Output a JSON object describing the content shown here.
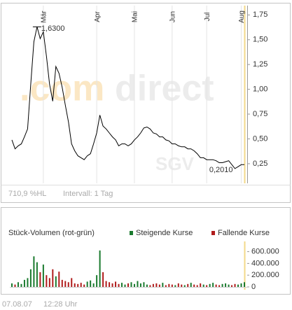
{
  "chart_data": [
    {
      "type": "line",
      "categories": [
        null,
        null,
        null,
        null,
        null,
        null,
        null,
        null,
        null,
        null,
        "Mär",
        null,
        null,
        null,
        null,
        null,
        null,
        null,
        null,
        null,
        null,
        null,
        null,
        null,
        null,
        null,
        null,
        "Apr",
        null,
        null,
        null,
        null,
        null,
        null,
        null,
        null,
        null,
        null,
        null,
        "Mai",
        null,
        null,
        null,
        null,
        null,
        null,
        null,
        null,
        null,
        null,
        null,
        "Jun",
        null,
        null,
        null,
        null,
        null,
        null,
        null,
        null,
        null,
        null,
        "Jul",
        null,
        null,
        null,
        null,
        null,
        null,
        null,
        null,
        null,
        null,
        "Aug",
        null
      ],
      "values": [
        0.49,
        0.4,
        0.43,
        0.45,
        0.52,
        0.6,
        1.05,
        1.48,
        1.63,
        1.51,
        1.58,
        1.33,
        1.05,
        0.88,
        1.23,
        1.16,
        1.02,
        0.84,
        0.67,
        0.45,
        0.38,
        0.33,
        0.31,
        0.29,
        0.33,
        0.35,
        0.45,
        0.56,
        0.74,
        0.63,
        0.6,
        0.56,
        0.52,
        0.49,
        0.43,
        0.45,
        0.45,
        0.43,
        0.45,
        0.49,
        0.52,
        0.56,
        0.61,
        0.62,
        0.6,
        0.56,
        0.55,
        0.52,
        0.52,
        0.49,
        0.48,
        0.45,
        0.45,
        0.43,
        0.42,
        0.42,
        0.4,
        0.4,
        0.38,
        0.35,
        0.31,
        0.31,
        0.29,
        0.29,
        0.29,
        0.28,
        0.26,
        0.26,
        0.27,
        0.28,
        0.24,
        0.201,
        0.22,
        0.24,
        0.24
      ],
      "color": "#000000",
      "ylim": [
        0.08,
        1.83
      ],
      "yticks": [
        {
          "value": 0.25,
          "label": "0,25"
        },
        {
          "value": 0.5,
          "label": "0,50"
        },
        {
          "value": 0.75,
          "label": "0,75"
        },
        {
          "value": 1.0,
          "label": "1,00"
        },
        {
          "value": 1.25,
          "label": "1,25"
        },
        {
          "value": 1.5,
          "label": "1,50"
        },
        {
          "value": 1.75,
          "label": "1,75"
        }
      ],
      "annotations": {
        "high": "1,6300",
        "low": "0,2010"
      },
      "watermark": [
        ".com",
        "direct",
        "SGV"
      ],
      "range_label": "710,9 %HL",
      "interval_label": "Intervall: 1 Tag"
    },
    {
      "type": "bar",
      "title": "Stück-Volumen (rot-grün)",
      "ylim": [
        0,
        750000
      ],
      "yticks": [
        0,
        {
          "value": 200000,
          "label": "200.000"
        },
        {
          "value": 400000,
          "label": "400.000"
        },
        {
          "value": 600000,
          "label": "600.000"
        }
      ],
      "series": [
        {
          "name": "Steigende Kurse",
          "color": "#1a7a2e",
          "values": [
            60000,
            null,
            80000,
            50000,
            120000,
            150000,
            300000,
            520000,
            420000,
            null,
            380000,
            null,
            null,
            null,
            180000,
            null,
            null,
            null,
            null,
            null,
            null,
            null,
            null,
            null,
            90000,
            110000,
            60000,
            200000,
            620000,
            null,
            null,
            null,
            null,
            null,
            null,
            70000,
            40000,
            null,
            80000,
            50000,
            100000,
            60000,
            80000,
            40000,
            null,
            null,
            null,
            null,
            70000,
            null,
            null,
            null,
            30000,
            null,
            null,
            30000,
            null,
            70000,
            null,
            null,
            null,
            40000,
            null,
            50000,
            70000,
            null,
            null,
            50000,
            60000,
            40000,
            null,
            null,
            40000,
            60000,
            80000
          ]
        },
        {
          "name": "Fallende Kurse",
          "color": "#b01c1c",
          "values": [
            null,
            40000,
            null,
            null,
            null,
            null,
            null,
            null,
            null,
            250000,
            null,
            200000,
            150000,
            300000,
            null,
            260000,
            120000,
            100000,
            80000,
            150000,
            60000,
            50000,
            70000,
            40000,
            null,
            null,
            null,
            null,
            null,
            250000,
            100000,
            80000,
            60000,
            90000,
            50000,
            null,
            null,
            60000,
            null,
            null,
            null,
            null,
            null,
            null,
            30000,
            50000,
            60000,
            40000,
            null,
            30000,
            50000,
            40000,
            null,
            60000,
            40000,
            null,
            50000,
            null,
            40000,
            30000,
            60000,
            null,
            30000,
            null,
            null,
            40000,
            30000,
            null,
            null,
            null,
            30000,
            50000,
            null,
            null,
            null
          ]
        }
      ]
    }
  ],
  "footer": {
    "date": "07.08.07",
    "time": "12:28 Uhr"
  }
}
